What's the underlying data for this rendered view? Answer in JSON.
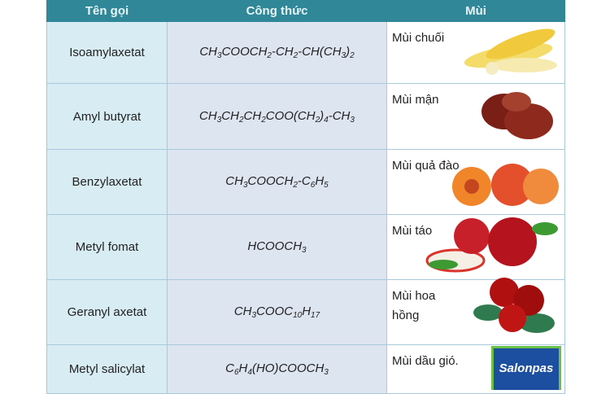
{
  "table": {
    "headers": [
      "Tên gọi",
      "Công thức",
      "Mùi"
    ],
    "rows": [
      {
        "name": "Isoamylaxetat",
        "formula": [
          [
            "CH",
            0
          ],
          [
            "3",
            1
          ],
          [
            "COOCH",
            0
          ],
          [
            "2",
            1
          ],
          [
            "-CH",
            0
          ],
          [
            "2",
            1
          ],
          [
            "-CH(CH",
            0
          ],
          [
            "3",
            1
          ],
          [
            ")",
            0
          ],
          [
            "2",
            1
          ]
        ],
        "smell": "Mùi chuối",
        "image": "banana"
      },
      {
        "name": "Amyl butyrat",
        "formula": [
          [
            "CH",
            0
          ],
          [
            "3",
            1
          ],
          [
            "CH",
            0
          ],
          [
            "2",
            1
          ],
          [
            "CH",
            0
          ],
          [
            "2",
            1
          ],
          [
            "COO(CH",
            0
          ],
          [
            "2",
            1
          ],
          [
            ")",
            0
          ],
          [
            "4",
            1
          ],
          [
            "-CH",
            0
          ],
          [
            "3",
            1
          ]
        ],
        "smell": "Mùi mận",
        "image": "plum"
      },
      {
        "name": "Benzylaxetat",
        "formula": [
          [
            "CH",
            0
          ],
          [
            "3",
            1
          ],
          [
            "COOCH",
            0
          ],
          [
            "2",
            1
          ],
          [
            "-C",
            0
          ],
          [
            "6",
            1
          ],
          [
            "H",
            0
          ],
          [
            "5",
            1
          ]
        ],
        "smell": "Mùi quả đào",
        "image": "peach"
      },
      {
        "name": "Metyl fomat",
        "formula": [
          [
            "HCOOCH",
            0
          ],
          [
            "3",
            1
          ]
        ],
        "smell": "Mùi táo",
        "image": "apple"
      },
      {
        "name": "Geranyl axetat",
        "formula": [
          [
            "CH",
            0
          ],
          [
            "3",
            1
          ],
          [
            "COOC",
            0
          ],
          [
            "10",
            1
          ],
          [
            "H",
            0
          ],
          [
            "17",
            1
          ]
        ],
        "smell": "Mùi hoa hồng",
        "image": "rose"
      },
      {
        "name": "Metyl salicylat",
        "formula": [
          [
            "C",
            0
          ],
          [
            "6",
            1
          ],
          [
            "H",
            0
          ],
          [
            "4",
            1
          ],
          [
            "(HO)COOCH",
            0
          ],
          [
            "3",
            1
          ]
        ],
        "smell": "Mùi dầu gió.",
        "image": "salonpas",
        "image_text": "Salonpas"
      }
    ]
  },
  "colors": {
    "header": "#2f8797",
    "name_col": "#d8ecf4",
    "formula_col": "#dde5f1"
  }
}
